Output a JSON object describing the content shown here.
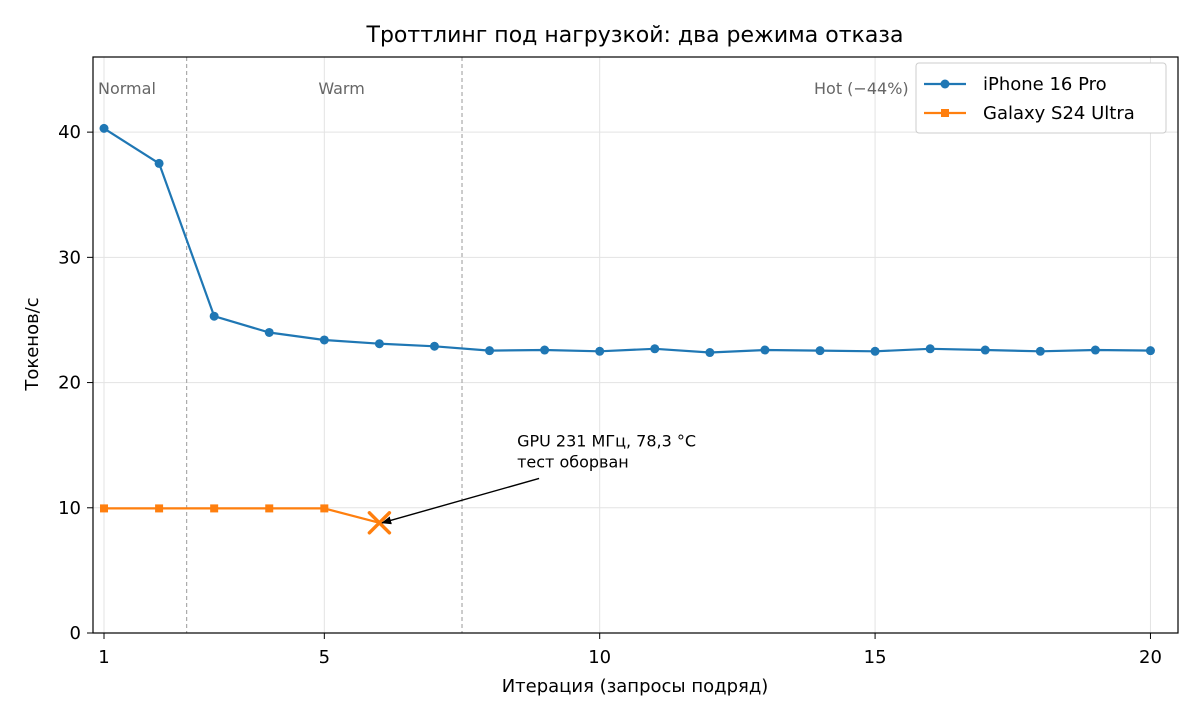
{
  "chart_data": {
    "type": "line",
    "title": "Троттлинг под нагрузкой: два режима отказа",
    "xlabel": "Итерация (запросы подряд)",
    "ylabel": "Токенов/с",
    "xlim": [
      0.8,
      20.5
    ],
    "ylim": [
      0,
      46
    ],
    "x_ticks": [
      1,
      5,
      10,
      15,
      20
    ],
    "y_ticks": [
      0,
      10,
      20,
      30,
      40
    ],
    "grid": true,
    "legend_position": "top-right",
    "series": [
      {
        "name": "iPhone 16 Pro",
        "color": "#1f77b4",
        "marker": "circle",
        "x": [
          1,
          2,
          3,
          4,
          5,
          6,
          7,
          8,
          9,
          10,
          11,
          12,
          13,
          14,
          15,
          16,
          17,
          18,
          19,
          20
        ],
        "values": [
          40.3,
          37.5,
          25.3,
          24.0,
          23.4,
          23.1,
          22.9,
          22.55,
          22.6,
          22.5,
          22.7,
          22.4,
          22.6,
          22.55,
          22.5,
          22.7,
          22.6,
          22.5,
          22.6,
          22.55
        ]
      },
      {
        "name": "Galaxy S24 Ultra",
        "color": "#ff7f0e",
        "marker": "square",
        "x": [
          1,
          2,
          3,
          4,
          5,
          6
        ],
        "values": [
          9.95,
          9.95,
          9.95,
          9.95,
          9.95,
          8.8
        ]
      }
    ],
    "end_marker": {
      "series": "Galaxy S24 Ultra",
      "x": 6,
      "y": 8.8,
      "symbol": "x",
      "color": "#ff7f0e"
    },
    "phases": [
      {
        "label": "Normal",
        "x": 1
      },
      {
        "label": "Warm",
        "x": 5
      },
      {
        "label": "Hot (−44%)",
        "x": 14
      }
    ],
    "phase_boundaries": [
      2.5,
      7.5
    ],
    "annotation": {
      "lines": [
        "GPU 231 МГц, 78,3 °C",
        "тест оборван"
      ],
      "text_x": 8.5,
      "text_y": 14.5,
      "arrow_to_x": 6.05,
      "arrow_to_y": 8.8
    }
  }
}
